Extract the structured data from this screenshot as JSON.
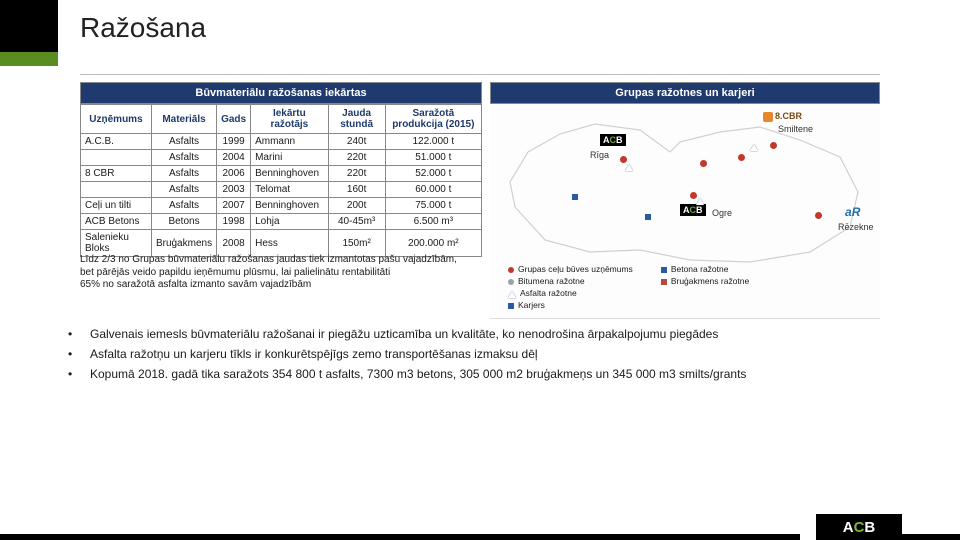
{
  "title": "Ražošana",
  "table": {
    "header": "Būvmateriālu ražošanas iekārtas",
    "columns": [
      "Uzņēmums",
      "Materiāls",
      "Gads",
      "Iekārtu ražotājs",
      "Jauda stundā",
      "Saražotā produkcija (2015)"
    ],
    "rows": [
      [
        "A.C.B.",
        "Asfalts",
        "1999",
        "Ammann",
        "240t",
        "122.000 t"
      ],
      [
        "",
        "Asfalts",
        "2004",
        "Marini",
        "220t",
        "51.000 t"
      ],
      [
        "8 CBR",
        "Asfalts",
        "2006",
        "Benninghoven",
        "220t",
        "52.000 t"
      ],
      [
        "",
        "Asfalts",
        "2003",
        "Telomat",
        "160t",
        "60.000 t"
      ],
      [
        "Ceļi un tilti",
        "Asfalts",
        "2007",
        "Benninghoven",
        "200t",
        "75.000 t"
      ],
      [
        "ACB Betons",
        "Betons",
        "1998",
        "Lohja",
        "40-45m³",
        "6.500 m³"
      ],
      [
        "Salenieku Bloks",
        "Bruģakmens",
        "2008",
        "Hess",
        "150m²",
        "200.000 m²"
      ]
    ]
  },
  "note": {
    "l1": "Līdz 2/3 no Grupas būvmateriālu ražošanas jaudas tiek izmantotas pašu vajadzībām,",
    "l2": "bet pārējās veido papildu ieņēmumu plūsmu, lai palielinātu rentabilitāti",
    "l3": "65% no saražotā asfalta izmanto savām vajadzībām"
  },
  "map": {
    "header": "Grupas ražotnes un karjeri",
    "outline_color": "#d7d7d7",
    "cities": {
      "riga": "Rīga",
      "smiltene": "Smiltene",
      "ogre": "Ogre",
      "rezekne": "Rēzekne"
    },
    "badges": {
      "acb_prefix": "A",
      "acb_green": "C",
      "acb_suffix": "B",
      "cbr": "8.CBR",
      "ar_prefix": "a",
      "ar_suffix": "R"
    },
    "legend": {
      "l1": "Grupas ceļu būves uzņēmums",
      "l2": "Bitumena ražotne",
      "l3": "Asfalta ražotne",
      "l4": "Karjers",
      "l5": "Betona ražotne",
      "l6": "Bruģakmens ražotne"
    },
    "colors": {
      "red": "#c0392b",
      "blue": "#2b5aa0",
      "grey": "#9aa0a6",
      "sq_red": "#b34a3a",
      "sq_blue": "#2b5aa0"
    }
  },
  "bullets": {
    "b1": "Galvenais iemesls būvmateriālu ražošanai ir piegāžu uzticamība un kvalitāte, ko nenodrošina ārpakalpojumu piegādes",
    "b2": "Asfalta ražotņu un karjeru tīkls ir konkurētspējīgs zemo transportēšanas izmaksu dēļ",
    "b3": "Kopumā 2018. gadā tika saražots 354 800 t asfalts, 7300 m3 betons,      305 000 m2 bruģakmeņs un 345 000 m3 smilts/grants"
  },
  "footer_logo": {
    "prefix": "A",
    "green": "C",
    "suffix": "B"
  }
}
